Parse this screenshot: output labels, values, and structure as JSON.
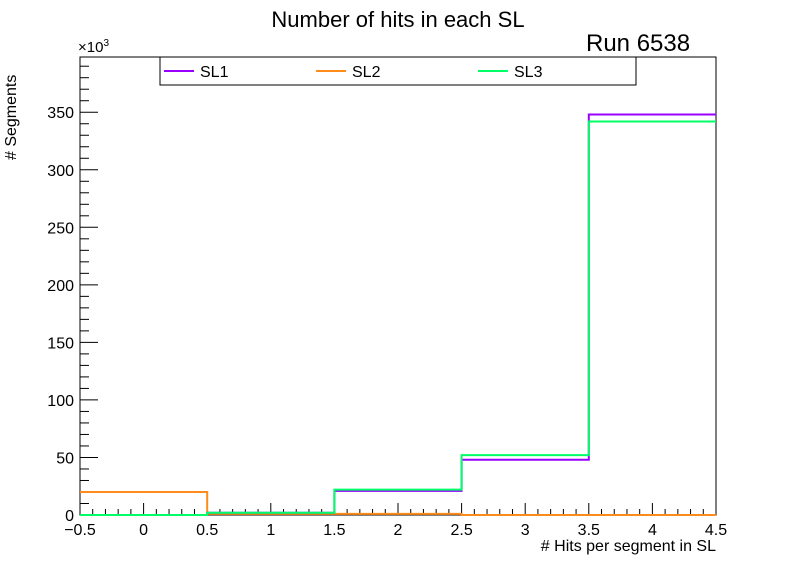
{
  "chart_data": {
    "type": "histogram",
    "title": "Number of hits in each SL",
    "annotation": "Run 6538",
    "xlabel": "# Hits per segment in SL",
    "ylabel": "# Segments",
    "y_multiplier": "×10",
    "y_multiplier_exp": "3",
    "xlim": [
      -0.5,
      4.5
    ],
    "ylim": [
      0,
      398
    ],
    "x_ticks": [
      -0.5,
      0,
      0.5,
      1,
      1.5,
      2,
      2.5,
      3,
      3.5,
      4,
      4.5
    ],
    "x_tick_labels": [
      "−0.5",
      "0",
      "0.5",
      "1",
      "1.5",
      "2",
      "2.5",
      "3",
      "3.5",
      "4",
      "4.5"
    ],
    "y_ticks": [
      0,
      50,
      100,
      150,
      200,
      250,
      300,
      350
    ],
    "y_tick_labels": [
      "0",
      "50",
      "100",
      "150",
      "200",
      "250",
      "300",
      "350"
    ],
    "bin_edges": [
      -0.5,
      0.5,
      1.5,
      2.5,
      3.5,
      4.5
    ],
    "legend_position": "top",
    "series": [
      {
        "name": "SL1",
        "color": "#9900ff",
        "values": [
          0,
          2,
          21,
          48,
          348
        ]
      },
      {
        "name": "SL2",
        "color": "#ff8c1a",
        "values": [
          20,
          1,
          1,
          0,
          0
        ]
      },
      {
        "name": "SL3",
        "color": "#00ff66",
        "values": [
          0,
          2,
          22,
          52,
          342
        ]
      }
    ]
  }
}
